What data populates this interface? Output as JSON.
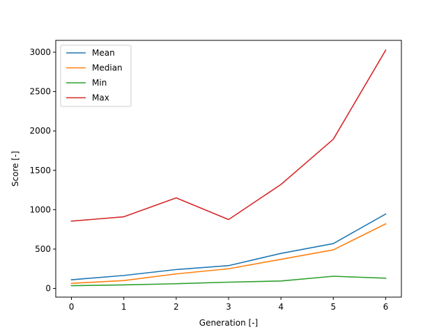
{
  "chart_data": {
    "type": "line",
    "title": "",
    "xlabel": "Generation [-]",
    "ylabel": "Score [-]",
    "x": [
      0,
      1,
      2,
      3,
      4,
      5,
      6
    ],
    "xlim": [
      -0.3,
      6.3
    ],
    "ylim": [
      -110,
      3150
    ],
    "xticks": [
      "0",
      "1",
      "2",
      "3",
      "4",
      "5",
      "6"
    ],
    "yticks": [
      "0",
      "500",
      "1000",
      "1500",
      "2000",
      "2500",
      "3000"
    ],
    "grid": false,
    "legend_position": "upper-left",
    "series": [
      {
        "name": "Mean",
        "color": "#1f77b4",
        "values": [
          110,
          165,
          240,
          290,
          445,
          570,
          945
        ]
      },
      {
        "name": "Median",
        "color": "#ff7f0e",
        "values": [
          65,
          100,
          185,
          250,
          370,
          490,
          820
        ]
      },
      {
        "name": "Min",
        "color": "#2ca02c",
        "values": [
          35,
          45,
          60,
          80,
          95,
          155,
          130
        ]
      },
      {
        "name": "Max",
        "color": "#d62728",
        "values": [
          855,
          910,
          1150,
          875,
          1320,
          1895,
          3025
        ]
      }
    ]
  }
}
